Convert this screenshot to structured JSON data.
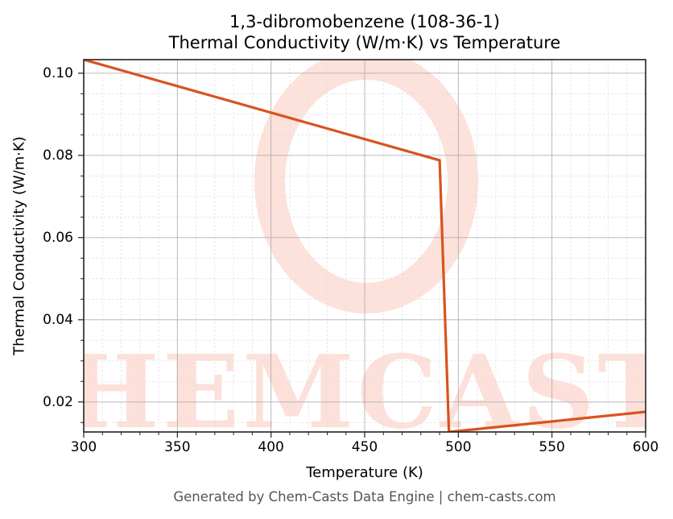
{
  "title": {
    "line1": "1,3-dibromobenzene (108-36-1)",
    "line2": "Thermal Conductivity (W/m·K) vs Temperature"
  },
  "axes": {
    "xlabel": "Temperature (K)",
    "ylabel": "Thermal Conductivity (W/m·K)",
    "xticks": [
      "300",
      "350",
      "400",
      "450",
      "500",
      "550",
      "600"
    ],
    "yticks": [
      "0.02",
      "0.04",
      "0.06",
      "0.08",
      "0.10"
    ]
  },
  "footer": "Generated by Chem-Casts Data Engine | chem-casts.com",
  "watermark": "CHEMCASTS",
  "colors": {
    "line": "#d9531e",
    "watermark": "#fdd9d2",
    "grid_major": "#b0b0b0",
    "grid_minor": "#e2e2e2"
  },
  "chart_data": {
    "type": "line",
    "title": "1,3-dibromobenzene (108-36-1) Thermal Conductivity (W/m·K) vs Temperature",
    "xlabel": "Temperature (K)",
    "ylabel": "Thermal Conductivity (W/m·K)",
    "xlim": [
      300,
      600
    ],
    "ylim": [
      0.0127,
      0.1033
    ],
    "grid": true,
    "legend": null,
    "series": [
      {
        "name": "Thermal Conductivity",
        "x": [
          300,
          490,
          495,
          600
        ],
        "y": [
          0.1033,
          0.0788,
          0.0127,
          0.0176
        ]
      }
    ]
  }
}
